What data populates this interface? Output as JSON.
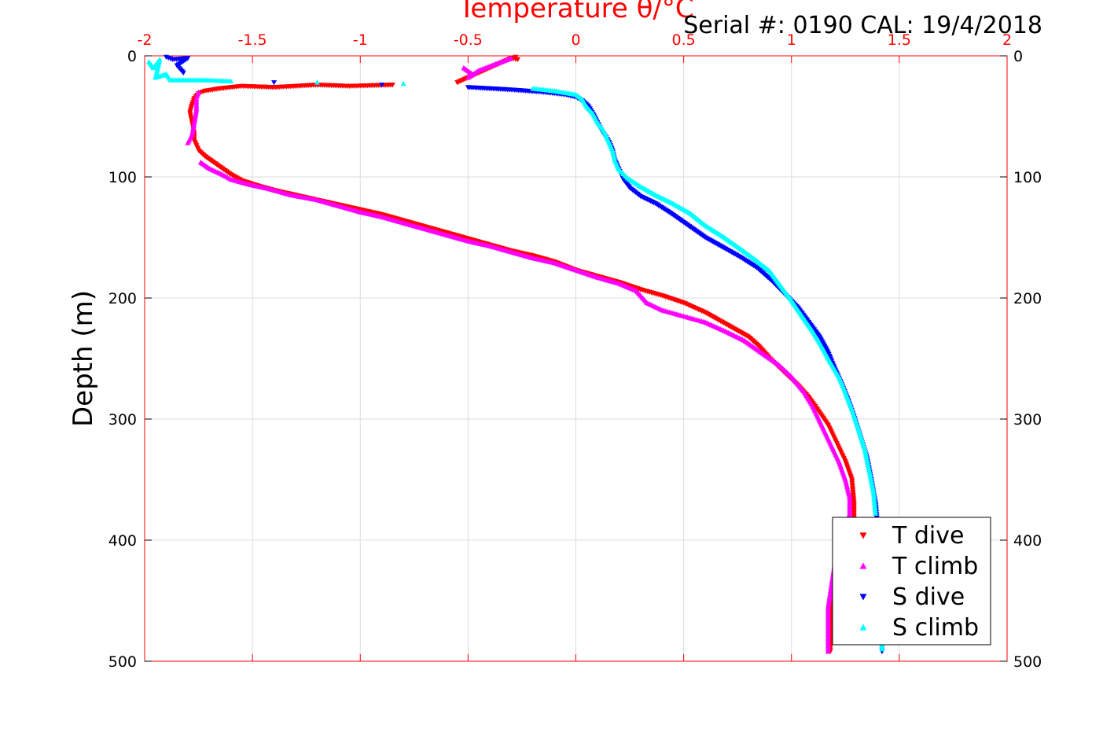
{
  "chart_data": {
    "type": "scatter",
    "title": "",
    "annotation": "Serial #: 0190  CAL: 19/4/2018",
    "xlabel": "Temperature θ/°C",
    "ylabel": "Depth (m)",
    "xlim": [
      -2,
      2
    ],
    "ylim": [
      0,
      500
    ],
    "y_reversed": true,
    "x_ticks": [
      "-2",
      "-1.5",
      "-1",
      "-0.5",
      "0",
      "0.5",
      "1",
      "1.5",
      "2"
    ],
    "y_ticks": [
      "0",
      "100",
      "200",
      "300",
      "400",
      "500"
    ],
    "grid": true,
    "legend_position": "bottom-right",
    "colors": {
      "axis_top": "#ff0000",
      "axis": "#000000",
      "grid": "#dcdcdc"
    },
    "series": [
      {
        "name": "T dive",
        "color": "#ff0000",
        "marker": "triangle-down",
        "points": [
          [
            -0.28,
            1
          ],
          [
            -0.27,
            3
          ],
          [
            -0.3,
            2
          ],
          [
            -0.55,
            22
          ],
          [
            -0.85,
            24
          ],
          [
            -1.05,
            25
          ],
          [
            -1.2,
            24
          ],
          [
            -1.4,
            26
          ],
          [
            -1.55,
            25
          ],
          [
            -1.65,
            27
          ],
          [
            -1.72,
            29
          ],
          [
            -1.75,
            31
          ],
          [
            -1.77,
            35
          ],
          [
            -1.78,
            40
          ],
          [
            -1.79,
            47
          ],
          [
            -1.78,
            55
          ],
          [
            -1.77,
            64
          ],
          [
            -1.77,
            70
          ],
          [
            -1.75,
            78
          ],
          [
            -1.72,
            83
          ],
          [
            -1.68,
            88
          ],
          [
            -1.64,
            93
          ],
          [
            -1.6,
            98
          ],
          [
            -1.55,
            103
          ],
          [
            -1.48,
            107
          ],
          [
            -1.4,
            111
          ],
          [
            -1.3,
            115
          ],
          [
            -1.2,
            119
          ],
          [
            -1.1,
            123
          ],
          [
            -1.0,
            127
          ],
          [
            -0.9,
            131
          ],
          [
            -0.8,
            136
          ],
          [
            -0.7,
            141
          ],
          [
            -0.6,
            146
          ],
          [
            -0.5,
            151
          ],
          [
            -0.4,
            156
          ],
          [
            -0.3,
            161
          ],
          [
            -0.2,
            165
          ],
          [
            -0.1,
            170
          ],
          [
            0.0,
            177
          ],
          [
            0.1,
            182
          ],
          [
            0.2,
            187
          ],
          [
            0.3,
            193
          ],
          [
            0.4,
            198
          ],
          [
            0.5,
            204
          ],
          [
            0.6,
            212
          ],
          [
            0.7,
            222
          ],
          [
            0.8,
            232
          ],
          [
            0.85,
            240
          ],
          [
            0.9,
            250
          ],
          [
            0.97,
            262
          ],
          [
            1.03,
            272
          ],
          [
            1.08,
            282
          ],
          [
            1.12,
            292
          ],
          [
            1.17,
            305
          ],
          [
            1.21,
            320
          ],
          [
            1.25,
            335
          ],
          [
            1.28,
            350
          ],
          [
            1.29,
            370
          ],
          [
            1.29,
            385
          ],
          [
            1.27,
            400
          ],
          [
            1.2,
            440
          ],
          [
            1.18,
            460
          ],
          [
            1.18,
            480
          ],
          [
            1.18,
            492
          ]
        ]
      },
      {
        "name": "T climb",
        "color": "#ff00ff",
        "marker": "triangle-up",
        "points": [
          [
            -0.52,
            10
          ],
          [
            -0.48,
            15
          ],
          [
            -0.5,
            18
          ],
          [
            -0.45,
            12
          ],
          [
            -0.3,
            2
          ],
          [
            -1.8,
            72
          ],
          [
            -1.78,
            65
          ],
          [
            -1.77,
            55
          ],
          [
            -1.76,
            45
          ],
          [
            -1.76,
            35
          ],
          [
            -1.75,
            30
          ],
          [
            -1.74,
            88
          ],
          [
            -1.7,
            93
          ],
          [
            -1.64,
            98
          ],
          [
            -1.6,
            102
          ],
          [
            -1.52,
            106
          ],
          [
            -1.42,
            110
          ],
          [
            -1.32,
            115
          ],
          [
            -1.2,
            119
          ],
          [
            -1.1,
            124
          ],
          [
            -1.0,
            129
          ],
          [
            -0.9,
            133
          ],
          [
            -0.8,
            138
          ],
          [
            -0.7,
            143
          ],
          [
            -0.6,
            148
          ],
          [
            -0.5,
            153
          ],
          [
            -0.4,
            157
          ],
          [
            -0.3,
            162
          ],
          [
            -0.2,
            167
          ],
          [
            -0.1,
            171
          ],
          [
            0.0,
            177
          ],
          [
            0.1,
            183
          ],
          [
            0.2,
            188
          ],
          [
            0.28,
            194
          ],
          [
            0.33,
            204
          ],
          [
            0.4,
            210
          ],
          [
            0.5,
            215
          ],
          [
            0.6,
            220
          ],
          [
            0.7,
            228
          ],
          [
            0.78,
            235
          ],
          [
            0.86,
            245
          ],
          [
            0.94,
            255
          ],
          [
            1.0,
            265
          ],
          [
            1.06,
            278
          ],
          [
            1.1,
            290
          ],
          [
            1.14,
            305
          ],
          [
            1.18,
            320
          ],
          [
            1.22,
            335
          ],
          [
            1.25,
            350
          ],
          [
            1.27,
            365
          ],
          [
            1.27,
            378
          ],
          [
            1.2,
            420
          ],
          [
            1.17,
            455
          ],
          [
            1.17,
            475
          ],
          [
            1.17,
            492
          ]
        ]
      },
      {
        "name": "S dive",
        "color": "#0000ff",
        "marker": "triangle-down",
        "points": [
          [
            -1.9,
            1
          ],
          [
            -1.87,
            3
          ],
          [
            -1.8,
            2
          ],
          [
            -1.85,
            8
          ],
          [
            -1.82,
            14
          ],
          [
            -1.4,
            22
          ],
          [
            -0.9,
            24
          ],
          [
            -0.5,
            26
          ],
          [
            -0.3,
            28
          ],
          [
            -0.15,
            30
          ],
          [
            -0.05,
            32
          ],
          [
            0.0,
            34
          ],
          [
            0.03,
            37
          ],
          [
            0.06,
            42
          ],
          [
            0.08,
            48
          ],
          [
            0.1,
            55
          ],
          [
            0.12,
            62
          ],
          [
            0.15,
            70
          ],
          [
            0.17,
            78
          ],
          [
            0.18,
            86
          ],
          [
            0.2,
            94
          ],
          [
            0.22,
            102
          ],
          [
            0.25,
            109
          ],
          [
            0.3,
            116
          ],
          [
            0.37,
            122
          ],
          [
            0.44,
            130
          ],
          [
            0.52,
            140
          ],
          [
            0.6,
            150
          ],
          [
            0.68,
            158
          ],
          [
            0.76,
            166
          ],
          [
            0.84,
            175
          ],
          [
            0.91,
            186
          ],
          [
            0.97,
            197
          ],
          [
            1.03,
            208
          ],
          [
            1.08,
            220
          ],
          [
            1.13,
            232
          ],
          [
            1.17,
            245
          ],
          [
            1.2,
            258
          ],
          [
            1.23,
            270
          ],
          [
            1.26,
            283
          ],
          [
            1.29,
            298
          ],
          [
            1.32,
            315
          ],
          [
            1.35,
            332
          ],
          [
            1.37,
            350
          ],
          [
            1.39,
            370
          ],
          [
            1.4,
            390
          ],
          [
            1.41,
            440
          ],
          [
            1.42,
            475
          ],
          [
            1.42,
            492
          ]
        ]
      },
      {
        "name": "S climb",
        "color": "#00ffff",
        "marker": "triangle-up",
        "points": [
          [
            -1.98,
            5
          ],
          [
            -1.96,
            10
          ],
          [
            -1.93,
            3
          ],
          [
            -1.95,
            18
          ],
          [
            -1.9,
            15
          ],
          [
            -1.88,
            20
          ],
          [
            -1.72,
            20
          ],
          [
            -1.6,
            21
          ],
          [
            -1.2,
            22
          ],
          [
            -0.8,
            23
          ],
          [
            -0.2,
            27
          ],
          [
            -0.1,
            29
          ],
          [
            0.0,
            32
          ],
          [
            0.03,
            36
          ],
          [
            0.05,
            42
          ],
          [
            0.08,
            48
          ],
          [
            0.1,
            55
          ],
          [
            0.13,
            62
          ],
          [
            0.15,
            70
          ],
          [
            0.17,
            78
          ],
          [
            0.18,
            86
          ],
          [
            0.2,
            94
          ],
          [
            0.24,
            101
          ],
          [
            0.3,
            108
          ],
          [
            0.37,
            115
          ],
          [
            0.45,
            122
          ],
          [
            0.53,
            130
          ],
          [
            0.6,
            140
          ],
          [
            0.68,
            149
          ],
          [
            0.76,
            159
          ],
          [
            0.83,
            168
          ],
          [
            0.9,
            178
          ],
          [
            0.95,
            190
          ],
          [
            1.0,
            202
          ],
          [
            1.05,
            215
          ],
          [
            1.1,
            228
          ],
          [
            1.14,
            240
          ],
          [
            1.18,
            253
          ],
          [
            1.22,
            265
          ],
          [
            1.25,
            278
          ],
          [
            1.28,
            292
          ],
          [
            1.31,
            308
          ],
          [
            1.34,
            325
          ],
          [
            1.36,
            342
          ],
          [
            1.38,
            360
          ],
          [
            1.39,
            378
          ],
          [
            1.41,
            430
          ],
          [
            1.42,
            470
          ],
          [
            1.42,
            490
          ]
        ]
      }
    ]
  }
}
